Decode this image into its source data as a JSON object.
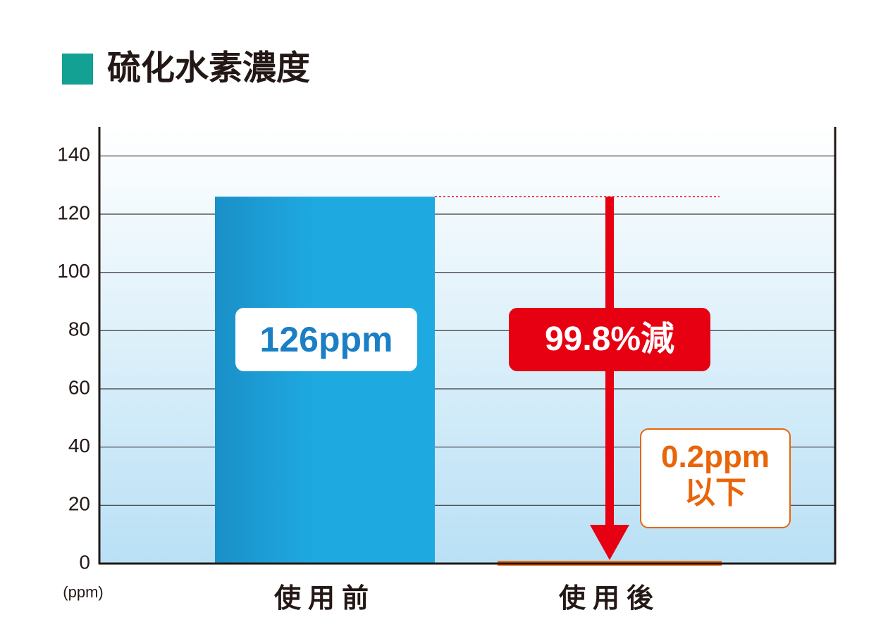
{
  "chart_data": {
    "type": "bar",
    "title": "硫化水素濃度",
    "categories": [
      "使用前",
      "使用後"
    ],
    "values": [
      126,
      0.2
    ],
    "value_labels": [
      "126ppm",
      "0.2ppm以下"
    ],
    "colors": [
      "#1fa9e1",
      "#e8650a"
    ],
    "y_unit_label": "(ppm)",
    "annotation": "99.8%減",
    "ylim": [
      0,
      150
    ],
    "yticks": [
      0,
      20,
      40,
      60,
      80,
      100,
      120,
      140
    ],
    "grid": true
  }
}
